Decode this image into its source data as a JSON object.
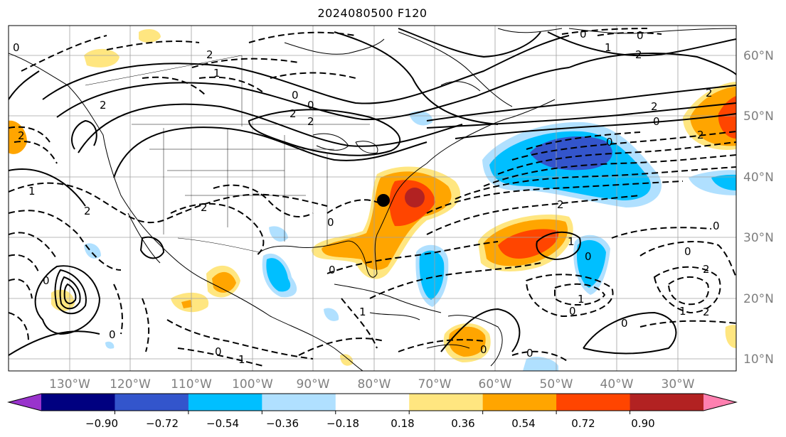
{
  "title": "2024080500 F120",
  "map": {
    "lon_labels": [
      "130°W",
      "120°W",
      "110°W",
      "100°W",
      "90°W",
      "80°W",
      "70°W",
      "60°W",
      "50°W",
      "40°W",
      "30°W"
    ],
    "lat_labels": [
      "60°N",
      "50°N",
      "40°N",
      "30°N",
      "20°N",
      "10°N"
    ],
    "marker": "black-dot"
  },
  "contour_labels": [
    "0",
    "1",
    "2",
    "-1",
    "-2"
  ],
  "colorbar": {
    "labels": [
      "−0.90",
      "−0.72",
      "−0.54",
      "−0.36",
      "−0.18",
      "0.18",
      "0.36",
      "0.54",
      "0.72",
      "0.90"
    ],
    "colors": [
      "#9933cc",
      "#000080",
      "#3355cc",
      "#00bfff",
      "#b0e0ff",
      "#ffffff",
      "#ffe680",
      "#ffa500",
      "#ff4500",
      "#b22222",
      "#ff80b0"
    ]
  }
}
